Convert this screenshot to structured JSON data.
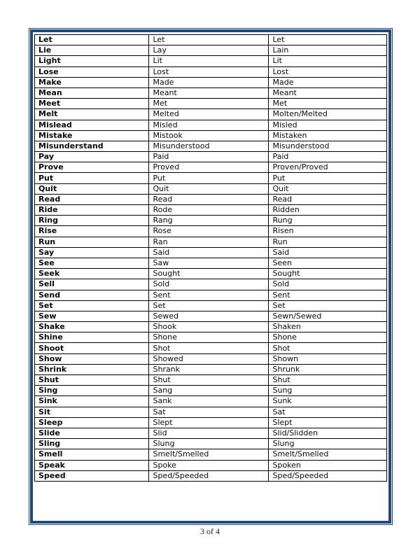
{
  "page": {
    "footer": "3 of 4"
  },
  "colors": {
    "frame_blue": "#1F497D",
    "table_border": "#000000"
  },
  "table": {
    "rows": [
      [
        "Let",
        "Let",
        "Let"
      ],
      [
        "Lie",
        "Lay",
        "Lain"
      ],
      [
        "Light",
        "Lit",
        "Lit"
      ],
      [
        "Lose",
        "Lost",
        "Lost"
      ],
      [
        "Make",
        "Made",
        "Made"
      ],
      [
        "Mean",
        "Meant",
        "Meant"
      ],
      [
        "Meet",
        "Met",
        "Met"
      ],
      [
        "Melt",
        "Melted",
        "Molten/Melted"
      ],
      [
        "Mislead",
        "Misled",
        "Misled"
      ],
      [
        "Mistake",
        "Mistook",
        "Mistaken"
      ],
      [
        "Misunderstand",
        "Misunderstood",
        "Misunderstood"
      ],
      [
        "Pay",
        "Paid",
        "Paid"
      ],
      [
        "Prove",
        "Proved",
        "Proven/Proved"
      ],
      [
        "Put",
        "Put",
        "Put"
      ],
      [
        "Quit",
        "Quit",
        "Quit"
      ],
      [
        "Read",
        "Read",
        "Read"
      ],
      [
        "Ride",
        "Rode",
        "Ridden"
      ],
      [
        "Ring",
        "Rang",
        "Rung"
      ],
      [
        "Rise",
        "Rose",
        "Risen"
      ],
      [
        "Run",
        "Ran",
        "Run"
      ],
      [
        "Say",
        "Said",
        "Said"
      ],
      [
        "See",
        "Saw",
        "Seen"
      ],
      [
        "Seek",
        "Sought",
        "Sought"
      ],
      [
        "Sell",
        "Sold",
        "Sold"
      ],
      [
        "Send",
        "Sent",
        "Sent"
      ],
      [
        "Set",
        "Set",
        "Set"
      ],
      [
        "Sew",
        "Sewed",
        "Sewn/Sewed"
      ],
      [
        "Shake",
        "Shook",
        "Shaken"
      ],
      [
        "Shine",
        "Shone",
        "Shone"
      ],
      [
        "Shoot",
        "Shot",
        "Shot"
      ],
      [
        "Show",
        "Showed",
        "Shown"
      ],
      [
        "Shrink",
        "Shrank",
        "Shrunk"
      ],
      [
        "Shut",
        "Shut",
        "Shut"
      ],
      [
        "Sing",
        "Sang",
        "Sung"
      ],
      [
        "Sink",
        "Sank",
        "Sunk"
      ],
      [
        "Sit",
        "Sat",
        "Sat"
      ],
      [
        "Sleep",
        "Slept",
        "Slept"
      ],
      [
        "Slide",
        "Slid",
        "Slid/Slidden"
      ],
      [
        "Sling",
        "Slung",
        "Slung"
      ],
      [
        "Smell",
        "Smelt/Smelled",
        "Smelt/Smelled"
      ],
      [
        "Speak",
        "Spoke",
        "Spoken"
      ],
      [
        "Speed",
        "Sped/Speeded",
        "Sped/Speeded"
      ]
    ]
  }
}
